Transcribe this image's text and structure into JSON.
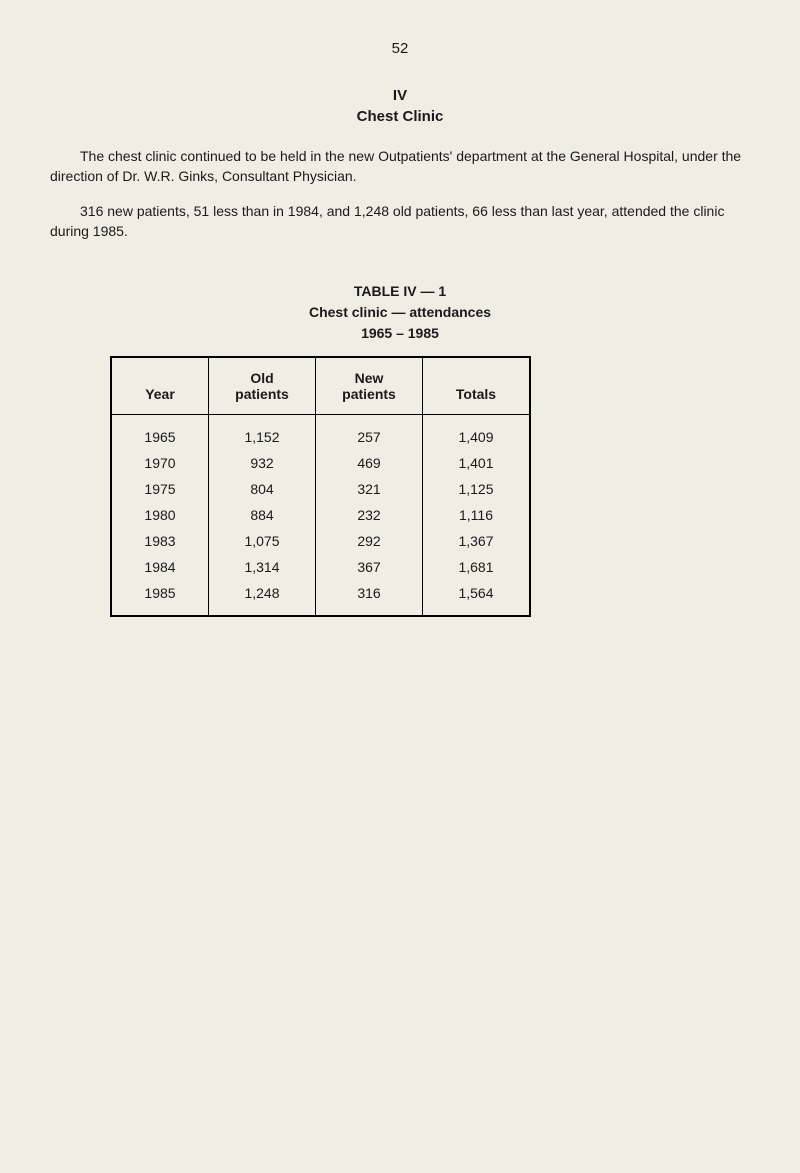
{
  "pageNumber": "52",
  "chapterNumber": "IV",
  "chapterTitle": "Chest Clinic",
  "paragraph1": "The chest clinic continued to be held in the new Outpatients' department at the General Hospital, under the direction of Dr. W.R. Ginks, Consultant Physician.",
  "paragraph2": "316 new patients, 51 less than in 1984, and 1,248 old patients, 66 less than last year, attended the clinic during 1985.",
  "table": {
    "captionLine1": "TABLE IV — 1",
    "captionLine2": "Chest clinic — attendances",
    "captionLine3": "1965 – 1985",
    "columns": [
      "Year",
      "Old patients",
      "New patients",
      "Totals"
    ],
    "rows": [
      [
        "1965",
        "1,152",
        "257",
        "1,409"
      ],
      [
        "1970",
        "932",
        "469",
        "1,401"
      ],
      [
        "1975",
        "804",
        "321",
        "1,125"
      ],
      [
        "1980",
        "884",
        "232",
        "1,116"
      ],
      [
        "1983",
        "1,075",
        "292",
        "1,367"
      ],
      [
        "1984",
        "1,314",
        "367",
        "1,681"
      ],
      [
        "1985",
        "1,248",
        "316",
        "1,564"
      ]
    ]
  }
}
